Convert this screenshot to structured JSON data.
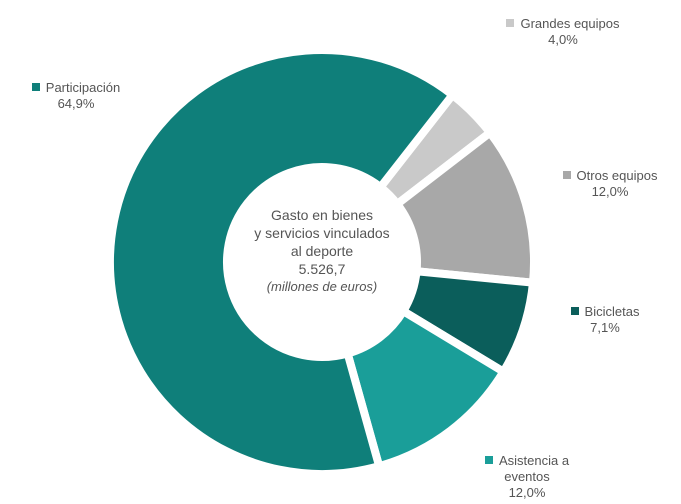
{
  "chart_data": {
    "type": "donut",
    "categories": [
      "Grandes equipos",
      "Otros equipos",
      "Bicicletas",
      "Asistencia a eventos",
      "Participación"
    ],
    "values": [
      4.0,
      12.0,
      7.1,
      12.0,
      64.9
    ],
    "value_labels": [
      "4,0%",
      "12,0%",
      "7,1%",
      "12,0%",
      "64,9%"
    ],
    "colors": [
      "#c9c9c9",
      "#a8a8a8",
      "#0b5e5b",
      "#1a9e99",
      "#0f7f7a"
    ],
    "center_text": [
      "Gasto en bienes",
      "y servicios vinculados",
      "al deporte",
      "5.526,7",
      "(millones de euros)"
    ]
  }
}
